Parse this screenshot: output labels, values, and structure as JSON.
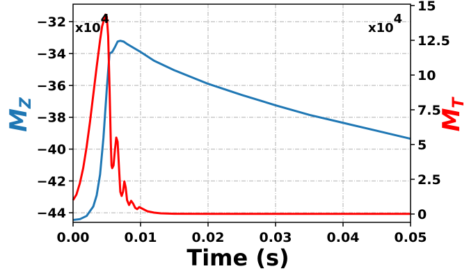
{
  "chart_data": {
    "type": "line",
    "xlabel": "Time (s)",
    "xlim": [
      0,
      0.05
    ],
    "x_ticks": [
      "0.00",
      "0.01",
      "0.02",
      "0.03",
      "0.04",
      "0.05"
    ],
    "x_tick_values": [
      0,
      0.01,
      0.02,
      0.03,
      0.04,
      0.05
    ],
    "grid": true,
    "left_axis": {
      "label_main": "M",
      "label_sub": "Z",
      "color": "#1f77b4",
      "multiplier": "x10",
      "multiplier_exp": "4",
      "ylim": [
        -44.6,
        -30.9
      ],
      "ticks": [
        "−32",
        "−34",
        "−36",
        "−38",
        "−40",
        "−42",
        "−44"
      ],
      "tick_values": [
        -32,
        -34,
        -36,
        -38,
        -40,
        -42,
        -44
      ]
    },
    "right_axis": {
      "label_main": "M",
      "label_sub": "T",
      "color": "#ff0000",
      "multiplier": "x10",
      "multiplier_exp": "4",
      "ylim": [
        -0.6,
        15.1
      ],
      "ticks": [
        "0",
        "2.5",
        "5",
        "7.5",
        "10",
        "12.5",
        "15"
      ],
      "tick_values": [
        0,
        2.5,
        5,
        7.5,
        10,
        12.5,
        15
      ]
    },
    "series": [
      {
        "axis": "left",
        "color": "#1f77b4",
        "points": [
          [
            0.0,
            -44.45
          ],
          [
            0.001,
            -44.4
          ],
          [
            0.002,
            -44.2
          ],
          [
            0.003,
            -43.6
          ],
          [
            0.0035,
            -42.9
          ],
          [
            0.004,
            -41.6
          ],
          [
            0.0045,
            -39.3
          ],
          [
            0.005,
            -36.2
          ],
          [
            0.0054,
            -34.0
          ],
          [
            0.0058,
            -33.9
          ],
          [
            0.0062,
            -33.6
          ],
          [
            0.0066,
            -33.25
          ],
          [
            0.007,
            -33.2
          ],
          [
            0.0075,
            -33.25
          ],
          [
            0.008,
            -33.4
          ],
          [
            0.01,
            -33.9
          ],
          [
            0.012,
            -34.45
          ],
          [
            0.015,
            -35.05
          ],
          [
            0.02,
            -35.9
          ],
          [
            0.025,
            -36.6
          ],
          [
            0.03,
            -37.25
          ],
          [
            0.035,
            -37.85
          ],
          [
            0.04,
            -38.35
          ],
          [
            0.045,
            -38.85
          ],
          [
            0.05,
            -39.35
          ]
        ]
      },
      {
        "axis": "right",
        "color": "#ff0000",
        "points": [
          [
            0.0,
            1.0
          ],
          [
            0.0005,
            1.4
          ],
          [
            0.001,
            2.2
          ],
          [
            0.0015,
            3.3
          ],
          [
            0.002,
            4.8
          ],
          [
            0.0025,
            6.6
          ],
          [
            0.003,
            8.6
          ],
          [
            0.0035,
            10.6
          ],
          [
            0.004,
            12.5
          ],
          [
            0.0043,
            13.5
          ],
          [
            0.0046,
            14.0
          ],
          [
            0.0048,
            14.35
          ],
          [
            0.005,
            14.2
          ],
          [
            0.0052,
            12.8
          ],
          [
            0.0054,
            9.2
          ],
          [
            0.0056,
            5.0
          ],
          [
            0.0057,
            3.5
          ],
          [
            0.0058,
            3.3
          ],
          [
            0.006,
            3.5
          ],
          [
            0.0062,
            4.6
          ],
          [
            0.0064,
            5.5
          ],
          [
            0.0066,
            5.2
          ],
          [
            0.0068,
            3.4
          ],
          [
            0.007,
            1.6
          ],
          [
            0.0072,
            1.3
          ],
          [
            0.0074,
            1.6
          ],
          [
            0.0076,
            2.35
          ],
          [
            0.0078,
            1.9
          ],
          [
            0.008,
            1.0
          ],
          [
            0.0083,
            0.65
          ],
          [
            0.0086,
            0.95
          ],
          [
            0.0089,
            0.75
          ],
          [
            0.0092,
            0.45
          ],
          [
            0.0095,
            0.35
          ],
          [
            0.0098,
            0.5
          ],
          [
            0.0102,
            0.4
          ],
          [
            0.0106,
            0.3
          ],
          [
            0.011,
            0.2
          ],
          [
            0.012,
            0.1
          ],
          [
            0.013,
            0.05
          ],
          [
            0.015,
            0.02
          ],
          [
            0.02,
            0.01
          ],
          [
            0.05,
            0.01
          ]
        ]
      }
    ]
  }
}
